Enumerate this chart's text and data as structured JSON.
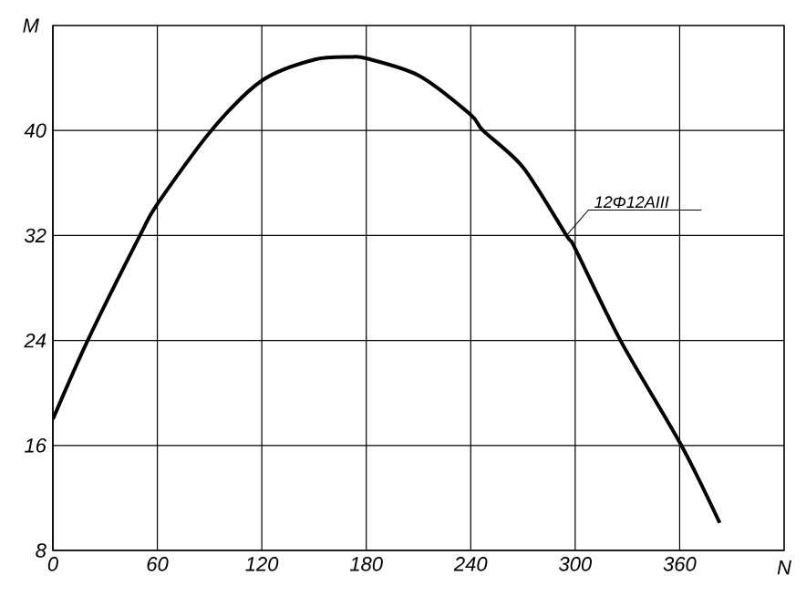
{
  "chart_data": {
    "type": "line",
    "xlabel": "N",
    "ylabel": "M",
    "x": [
      0,
      20,
      50,
      60,
      91,
      120,
      150,
      171,
      180,
      210,
      240,
      247,
      270,
      295,
      300,
      326,
      361,
      383
    ],
    "series": [
      {
        "color": "#000000",
        "values": [
          18,
          24,
          32,
          34.4,
          40,
          43.8,
          45.4,
          45.6,
          45.5,
          44.2,
          41.2,
          40,
          37.2,
          32,
          31,
          24,
          16,
          10.1
        ]
      }
    ],
    "xlim": [
      0,
      420
    ],
    "ylim": [
      8,
      48
    ],
    "xticks": [
      0,
      60,
      120,
      180,
      240,
      300,
      360
    ],
    "yticks": [
      8,
      16,
      24,
      32,
      40
    ],
    "grid": true,
    "marker": "none",
    "line_style": "solid",
    "annotations": [
      {
        "text": "12Φ12AIII",
        "x": 295,
        "y": 32
      }
    ]
  }
}
